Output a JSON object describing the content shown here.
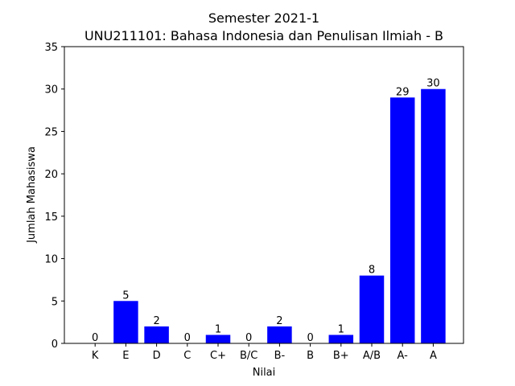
{
  "chart_data": {
    "type": "bar",
    "title": "Semester 2021-1",
    "subtitle": "UNU211101: Bahasa Indonesia dan Penulisan Ilmiah - B",
    "xlabel": "Nilai",
    "ylabel": "Jumlah Mahasiswa",
    "categories": [
      "K",
      "E",
      "D",
      "C",
      "C+",
      "B/C",
      "B-",
      "B",
      "B+",
      "A/B",
      "A-",
      "A"
    ],
    "values": [
      0,
      5,
      2,
      0,
      1,
      0,
      2,
      0,
      1,
      8,
      29,
      30
    ],
    "ylim": [
      0,
      35
    ],
    "yticks": [
      0,
      5,
      10,
      15,
      20,
      25,
      30,
      35
    ],
    "bar_color": "#0000ff",
    "grid": false,
    "show_data_labels": true
  }
}
